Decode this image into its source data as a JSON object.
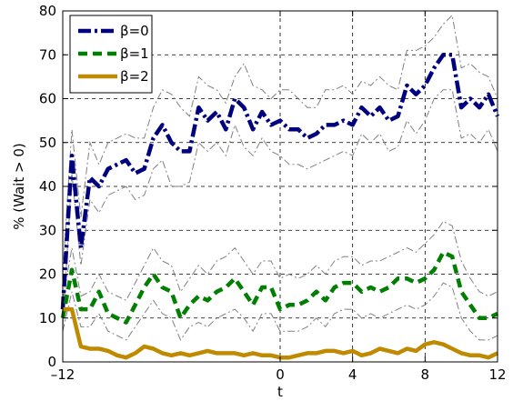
{
  "chart_data": {
    "type": "line",
    "title": "",
    "xlabel": "t",
    "ylabel": "% (Wait > 0)",
    "xlim": [
      -12,
      12
    ],
    "ylim": [
      0,
      80
    ],
    "xticks": [
      -12,
      0,
      4,
      8,
      12
    ],
    "xtick_labels": [
      "–12",
      "0",
      "4",
      "8",
      "12"
    ],
    "yticks": [
      0,
      10,
      20,
      30,
      40,
      50,
      60,
      70,
      80
    ],
    "ytick_labels": [
      "0",
      "10",
      "20",
      "30",
      "40",
      "50",
      "60",
      "70",
      "80"
    ],
    "grid": true,
    "legend_position": "top-left",
    "x": [
      -12,
      -11.5,
      -11,
      -10.5,
      -10,
      -9.5,
      -9,
      -8.5,
      -8,
      -7.5,
      -7,
      -6.5,
      -6,
      -5.5,
      -5,
      -4.5,
      -4,
      -3.5,
      -3,
      -2.5,
      -2,
      -1.5,
      -1,
      -0.5,
      0,
      0.5,
      1,
      1.5,
      2,
      2.5,
      3,
      3.5,
      4,
      4.5,
      5,
      5.5,
      6,
      6.5,
      7,
      7.5,
      8,
      8.5,
      9,
      9.5,
      10,
      10.5,
      11,
      11.5,
      12
    ],
    "series": [
      {
        "name": "β=0",
        "color": "#00007f",
        "style": "dash-dot",
        "values": [
          12,
          47,
          26,
          42,
          40,
          44,
          45,
          46,
          43,
          44,
          51,
          54,
          50,
          48,
          48,
          58,
          55,
          57,
          53,
          60,
          58,
          53,
          57,
          54,
          55,
          53,
          53,
          51,
          52,
          54,
          54,
          55,
          54,
          58,
          56,
          58,
          55,
          56,
          63,
          61,
          63,
          67,
          70,
          70,
          58,
          60,
          58,
          61,
          56
        ],
        "upper": [
          20,
          53,
          33,
          50,
          45,
          50,
          51,
          52,
          51,
          51,
          58,
          62,
          61,
          58,
          56,
          65,
          63,
          62,
          59,
          65,
          68,
          63,
          62,
          60,
          62,
          62,
          60,
          58,
          58,
          62,
          62,
          63,
          61,
          64,
          63,
          65,
          63,
          62,
          71,
          71,
          72,
          74,
          77,
          79,
          67,
          68,
          66,
          65,
          60
        ],
        "lower": [
          8,
          43,
          22,
          37,
          34,
          38,
          39,
          40,
          37,
          38,
          44,
          46,
          40,
          40,
          41,
          50,
          48,
          50,
          47,
          54,
          49,
          47,
          51,
          48,
          47,
          45,
          45,
          44,
          45,
          46,
          47,
          48,
          47,
          52,
          50,
          52,
          48,
          49,
          55,
          52,
          55,
          60,
          62,
          62,
          51,
          52,
          50,
          53,
          48
        ]
      },
      {
        "name": "β=1",
        "color": "#007f00",
        "style": "dashed",
        "values": [
          10,
          21,
          12,
          12,
          16,
          11,
          10,
          9,
          13,
          17,
          20,
          17,
          16,
          10,
          13,
          15,
          14,
          16,
          17,
          19,
          16,
          13,
          17,
          17,
          12,
          13,
          13,
          14,
          16,
          14,
          17,
          18,
          18,
          16,
          17,
          16,
          17,
          19,
          19,
          18,
          19,
          21,
          25,
          24,
          16,
          13,
          10,
          10,
          11
        ],
        "upper": [
          14,
          26,
          15,
          16,
          20,
          16,
          15,
          14,
          18,
          22,
          26,
          23,
          22,
          16,
          19,
          22,
          20,
          23,
          24,
          26,
          23,
          20,
          23,
          23,
          19,
          20,
          19,
          20,
          22,
          20,
          23,
          24,
          24,
          22,
          23,
          23,
          24,
          25,
          26,
          25,
          27,
          29,
          32,
          31,
          23,
          19,
          16,
          15,
          16
        ],
        "lower": [
          7,
          16,
          8,
          8,
          11,
          7,
          6,
          5,
          8,
          11,
          14,
          11,
          10,
          5,
          8,
          9,
          8,
          10,
          11,
          12,
          10,
          7,
          11,
          11,
          7,
          7,
          7,
          8,
          10,
          8,
          11,
          12,
          12,
          10,
          11,
          10,
          11,
          12,
          13,
          12,
          13,
          15,
          18,
          17,
          10,
          7,
          5,
          5,
          6
        ]
      },
      {
        "name": "β=2",
        "color": "#bf8a00",
        "style": "solid",
        "values": [
          12,
          12,
          3.5,
          3,
          3,
          2.5,
          1.5,
          1,
          2,
          3.5,
          3,
          2,
          1.5,
          2,
          1.5,
          2,
          2.5,
          2,
          2,
          2,
          1.5,
          2,
          1.5,
          1.5,
          1,
          1,
          1.5,
          2,
          2,
          2.5,
          2.5,
          2,
          2.5,
          1.5,
          2,
          3,
          2.5,
          2,
          3,
          2.5,
          4,
          4.5,
          4,
          3,
          2,
          1.5,
          1.5,
          1,
          2
        ]
      }
    ]
  }
}
